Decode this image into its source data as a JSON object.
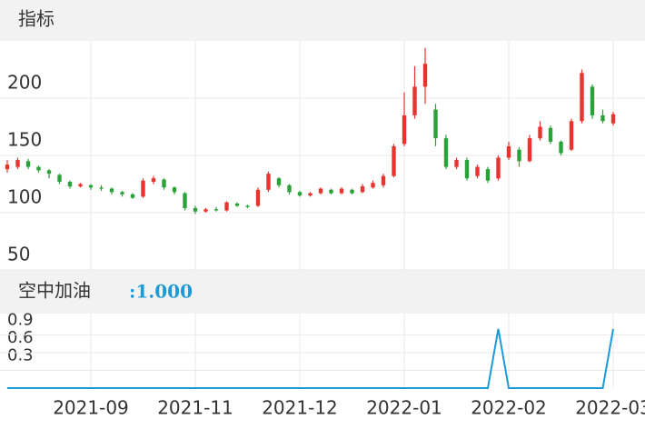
{
  "header": {
    "title": "指标"
  },
  "chart_data": [
    {
      "type": "candlestick",
      "categories": [
        null,
        null,
        null,
        null,
        null,
        null,
        null,
        null,
        "2021-09",
        null,
        null,
        null,
        null,
        null,
        null,
        null,
        null,
        null,
        "2021-11",
        null,
        null,
        null,
        null,
        null,
        null,
        null,
        null,
        null,
        "2021-12",
        null,
        null,
        null,
        null,
        null,
        null,
        null,
        null,
        null,
        "2022-01",
        null,
        null,
        null,
        null,
        null,
        null,
        null,
        null,
        null,
        "2022-02",
        null,
        null,
        null,
        null,
        null,
        null,
        null,
        null,
        null,
        "2022-03"
      ],
      "open": [
        138,
        140,
        145,
        140,
        137,
        133,
        127,
        123,
        124,
        122,
        121,
        118,
        116,
        114,
        127,
        129,
        122,
        117,
        104,
        101,
        103,
        102,
        108,
        106,
        106,
        120,
        130,
        124,
        118,
        115,
        117,
        120,
        117,
        120,
        118,
        122,
        124,
        132,
        160,
        185,
        210,
        190,
        165,
        140,
        146,
        132,
        138,
        130,
        148,
        155,
        145,
        165,
        174,
        162,
        155,
        180,
        210,
        185,
        178
      ],
      "close": [
        142,
        146,
        140,
        137,
        134,
        127,
        123,
        125,
        122,
        121,
        118,
        116,
        113,
        128,
        130,
        122,
        118,
        104,
        101,
        103,
        102,
        109,
        106,
        105,
        120,
        134,
        124,
        118,
        115,
        117,
        121,
        117,
        121,
        117,
        123,
        126,
        132,
        158,
        185,
        210,
        230,
        165,
        140,
        146,
        130,
        140,
        128,
        148,
        158,
        145,
        165,
        175,
        162,
        152,
        180,
        222,
        185,
        180,
        186
      ],
      "high": [
        146,
        148,
        147,
        141,
        138,
        134,
        128,
        126,
        125,
        124,
        122,
        119,
        117,
        130,
        132,
        130,
        123,
        118,
        106,
        104,
        105,
        110,
        109,
        107,
        122,
        136,
        131,
        125,
        119,
        118,
        122,
        121,
        122,
        121,
        125,
        128,
        134,
        160,
        205,
        228,
        244,
        195,
        168,
        148,
        148,
        142,
        140,
        150,
        162,
        157,
        168,
        180,
        176,
        163,
        182,
        225,
        212,
        190,
        188
      ],
      "low": [
        135,
        138,
        138,
        135,
        130,
        125,
        121,
        122,
        120,
        119,
        116,
        114,
        112,
        113,
        125,
        120,
        116,
        102,
        99,
        100,
        101,
        101,
        105,
        104,
        105,
        118,
        122,
        116,
        114,
        114,
        116,
        116,
        116,
        116,
        117,
        121,
        122,
        131,
        158,
        182,
        195,
        158,
        138,
        138,
        128,
        130,
        126,
        128,
        146,
        140,
        144,
        163,
        160,
        150,
        154,
        178,
        182,
        178,
        176
      ],
      "up_color": "#e8342e",
      "down_color": "#2aa23a",
      "ylim": [
        50,
        250
      ],
      "yticks": [
        50,
        100,
        150,
        200
      ],
      "grid": true
    },
    {
      "type": "line",
      "title": "空中加油",
      "current_label": ":1.000",
      "color": "#1a9bd7",
      "values": [
        0,
        0,
        0,
        0,
        0,
        0,
        0,
        0,
        0,
        0,
        0,
        0,
        0,
        0,
        0,
        0,
        0,
        0,
        0,
        0,
        0,
        0,
        0,
        0,
        0,
        0,
        0,
        0,
        0,
        0,
        0,
        0,
        0,
        0,
        0,
        0,
        0,
        0,
        0,
        0,
        0,
        0,
        0,
        0,
        0,
        0,
        0,
        1,
        0,
        0,
        0,
        0,
        0,
        0,
        0,
        0,
        0,
        0,
        1
      ],
      "ylim": [
        0,
        1.26
      ],
      "yticks": [
        0.3,
        0.6,
        0.9
      ],
      "grid": true
    }
  ]
}
